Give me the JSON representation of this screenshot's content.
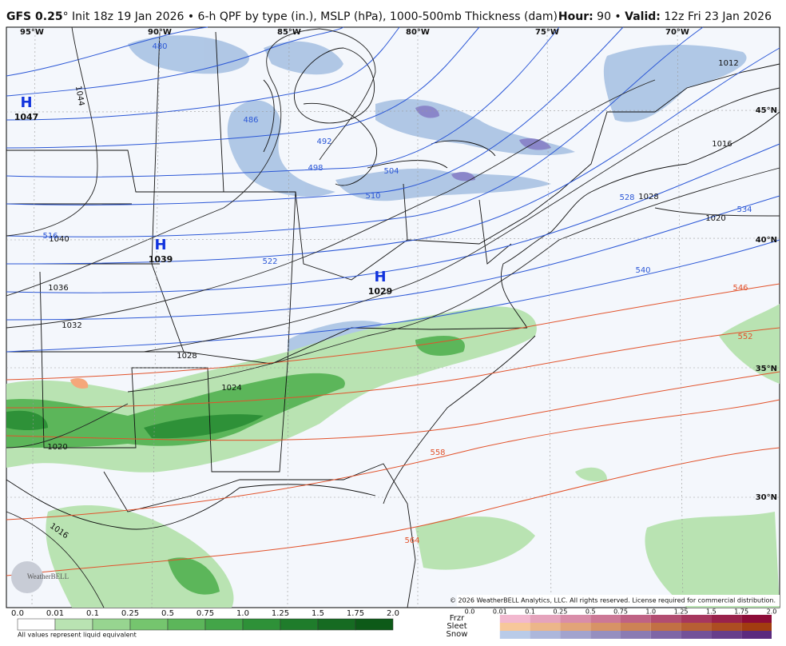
{
  "header": {
    "model": "GFS 0.25",
    "degree": "°",
    "init": "Init 18z 19 Jan 2026 • 6-h QPF by type (in.), MSLP (hPa), 1000-500mb Thickness (dam)",
    "hour_label": "Hour:",
    "hour": "90 •",
    "valid_label": "Valid:",
    "valid": "12z Fri 23 Jan 2026"
  },
  "longitudes": [
    "95°W",
    "90°W",
    "85°W",
    "80°W",
    "75°W",
    "70°W"
  ],
  "latitudes": [
    "45°N",
    "40°N",
    "35°N",
    "30°N"
  ],
  "highs": [
    {
      "symbol": "H",
      "pressure": "1047"
    },
    {
      "symbol": "H",
      "pressure": "1039"
    },
    {
      "symbol": "H",
      "pressure": "1029"
    }
  ],
  "isobars": [
    "1044",
    "1040",
    "1036",
    "1032",
    "1028",
    "1024",
    "1020",
    "1016",
    "1012",
    "1020",
    "1016",
    "1028"
  ],
  "thickness": [
    "480",
    "486",
    "492",
    "498",
    "504",
    "510",
    "516",
    "522",
    "528",
    "534",
    "540",
    "546",
    "552",
    "558",
    "564"
  ],
  "logo": "WeatherBELL",
  "copyright": "© 2026 WeatherBELL Analytics, LLC. All rights reserved. License required for commercial distribution.",
  "qpf_scale": [
    "0.0",
    "0.01",
    "0.1",
    "0.25",
    "0.5",
    "0.75",
    "1.0",
    "1.25",
    "1.5",
    "1.75",
    "2.0"
  ],
  "qpf_note": "All values represent liquid equivalent",
  "ptype_labels": [
    "Frzr",
    "Sleet",
    "Snow"
  ],
  "ptype_scale": [
    "0.0",
    "0.01",
    "0.1",
    "0.25",
    "0.5",
    "0.75",
    "1.0",
    "1.25",
    "1.5",
    "1.75",
    "2.0"
  ]
}
